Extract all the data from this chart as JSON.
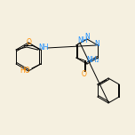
{
  "bg_color": "#f5f0e0",
  "bond_color": "#000000",
  "n_color": "#1e90ff",
  "o_color": "#ff8c00",
  "figsize": [
    1.52,
    1.52
  ],
  "dpi": 100,
  "xlim": [
    0,
    152
  ],
  "ylim": [
    0,
    152
  ]
}
